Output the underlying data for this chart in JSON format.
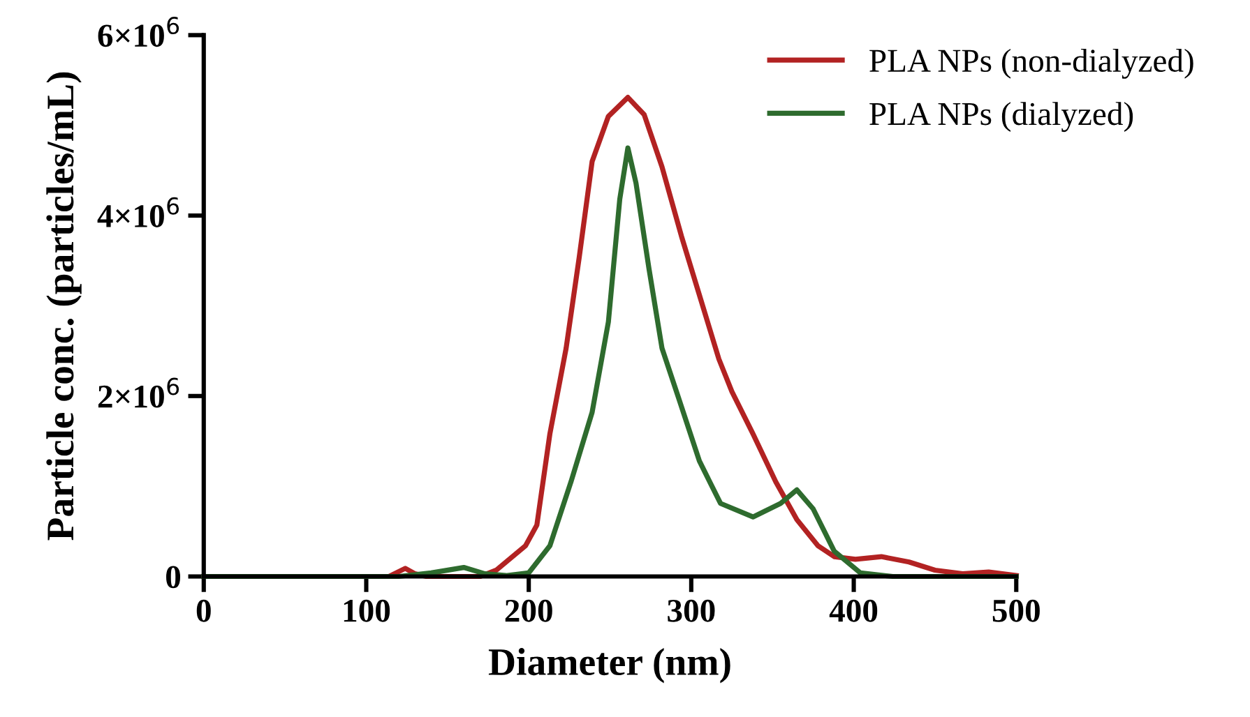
{
  "chart_data": {
    "type": "line",
    "xlabel": "Diameter (nm)",
    "ylabel": "Particle conc. (particles/mL)",
    "xlim": [
      0,
      500
    ],
    "xticks": [
      0,
      100,
      200,
      300,
      400,
      500
    ],
    "ylim": [
      0,
      6000000
    ],
    "yticks": [
      0,
      {
        "value": 2000000,
        "label": "2×10$^{6}$"
      },
      {
        "value": 4000000,
        "label": "4×10$^{6}$"
      },
      {
        "value": 6000000,
        "label": "6×10$^{6}$"
      }
    ],
    "grid": false,
    "legend": "top right",
    "marker": "none",
    "line_style": "solid",
    "series": [
      {
        "name": "PLA NPs (non-dialyzed)",
        "color": "#b22222",
        "x": [
          0,
          114,
          124,
          130,
          137,
          170,
          180,
          198,
          205,
          213,
          223,
          231,
          239,
          249,
          261,
          271,
          282,
          294,
          305,
          317,
          325,
          338,
          352,
          365,
          378,
          388,
          401,
          417,
          434,
          450,
          467,
          483,
          500
        ],
        "values": [
          0,
          0,
          90000,
          30000,
          0,
          0,
          70000,
          340000,
          570000,
          1580000,
          2530000,
          3530000,
          4600000,
          5100000,
          5310000,
          5120000,
          4540000,
          3770000,
          3120000,
          2410000,
          2050000,
          1580000,
          1050000,
          630000,
          340000,
          220000,
          190000,
          220000,
          160000,
          70000,
          30000,
          50000,
          10000
        ]
      },
      {
        "name": "PLA NPs (dialyzed)",
        "color": "#2e6b2e",
        "x": [
          0,
          120,
          140,
          160,
          173,
          186,
          200,
          213,
          226,
          239,
          249,
          256,
          261,
          266,
          274,
          282,
          292,
          305,
          318,
          338,
          355,
          365,
          375,
          388,
          404,
          424,
          500
        ],
        "values": [
          0,
          0,
          40000,
          100000,
          30000,
          10000,
          40000,
          340000,
          1050000,
          1820000,
          2820000,
          4180000,
          4750000,
          4360000,
          3410000,
          2530000,
          1990000,
          1280000,
          810000,
          660000,
          810000,
          960000,
          750000,
          280000,
          40000,
          0,
          0
        ]
      }
    ]
  }
}
